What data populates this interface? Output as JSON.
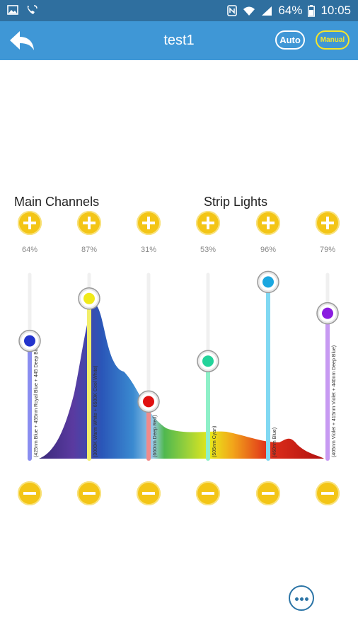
{
  "statusbar": {
    "battery": "64%",
    "time": "10:05"
  },
  "header": {
    "title": "test1",
    "auto_label": "Auto",
    "manual_label": "Manual"
  },
  "sections": {
    "main": "Main Channels",
    "strip": "Strip Lights"
  },
  "channels": [
    {
      "percent": "64%",
      "value": 0.64,
      "color": "#2233cc",
      "bar": "#8a8ef0",
      "label": "(425nm Blue + 455nm Royal Blue + 445 Deep Blue)"
    },
    {
      "percent": "87%",
      "value": 0.87,
      "color": "#f0ea1a",
      "bar": "#f2ee6a",
      "label": "(3000K Warm White + 6500K Cool White)"
    },
    {
      "percent": "31%",
      "value": 0.31,
      "color": "#e01010",
      "bar": "#f08a8a",
      "label": "(660nm Deep Red)"
    },
    {
      "percent": "53%",
      "value": 0.53,
      "color": "#22d39a",
      "bar": "#8ef0c8",
      "label": "(505nm Cyan)"
    },
    {
      "percent": "96%",
      "value": 0.96,
      "color": "#1aa7e0",
      "bar": "#80d8f2",
      "label": "(460nm Blue)"
    },
    {
      "percent": "79%",
      "value": 0.79,
      "color": "#8a1be0",
      "bar": "#c79af2",
      "label": "(405nm Violet + 415nm Violet + 440nm Deep Blue)"
    }
  ],
  "icons": {
    "back": "back-arrow-icon",
    "plus": "plus-icon",
    "minus": "minus-icon",
    "more": "more-dots-icon"
  }
}
